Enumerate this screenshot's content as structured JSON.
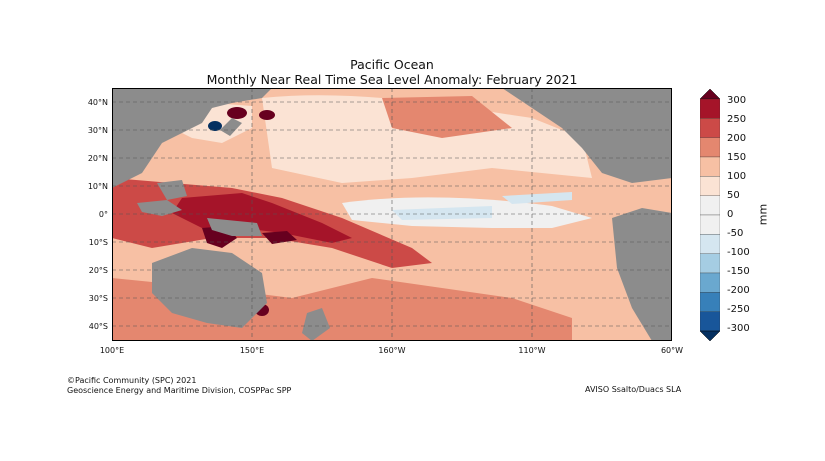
{
  "title": {
    "line1": "Pacific Ocean",
    "line2": "Monthly Near Real Time Sea Level Anomaly: February 2021"
  },
  "map": {
    "lat_labels": [
      "40°N",
      "30°N",
      "20°N",
      "10°N",
      "0°",
      "10°S",
      "20°S",
      "30°S",
      "40°S"
    ],
    "lon_labels": [
      "100°E",
      "150°E",
      "160°W",
      "110°W",
      "60°W"
    ],
    "land_color": "#8c8c8c"
  },
  "colorbar": {
    "unit": "mm",
    "levels": [
      "300",
      "250",
      "200",
      "150",
      "100",
      "50",
      "0",
      "-50",
      "-100",
      "-150",
      "-200",
      "-250",
      "-300"
    ],
    "colors": [
      "#67001f",
      "#a51429",
      "#cc4a47",
      "#e4876f",
      "#f7c0a4",
      "#fbe3d4",
      "#f0f0f0",
      "#d5e6f0",
      "#a5cde3",
      "#6aa8cf",
      "#3780b9",
      "#18569a",
      "#053061"
    ]
  },
  "footer": {
    "credit_line1": "©Pacific Community (SPC) 2021",
    "credit_line2": "Geoscience Energy and Maritime Division, COSPPac SPP",
    "source": "AVISO Ssalto/Duacs SLA"
  }
}
